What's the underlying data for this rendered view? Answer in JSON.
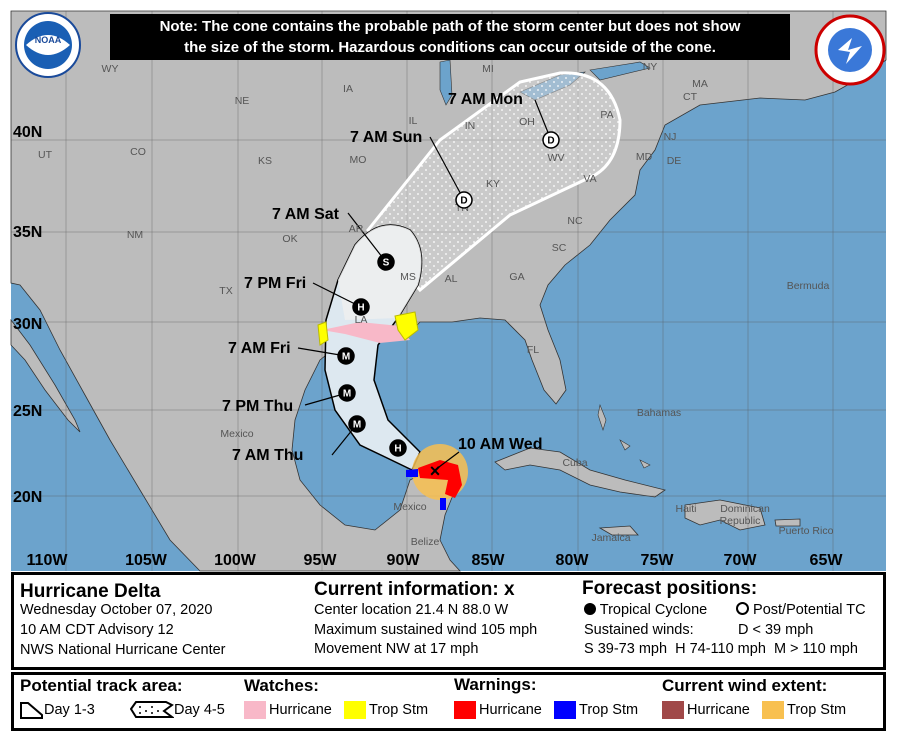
{
  "note": [
    "Note: The cone contains the probable path of the storm center but does not show",
    "the size of the storm. Hazardous conditions can occur outside of the cone."
  ],
  "logos": {
    "left": "NOAA",
    "right": "NATIONAL WEATHER SERVICE"
  },
  "colors": {
    "ocean": "#6ca3cc",
    "land": "#bcbcbc",
    "cone": "#ffffff",
    "hurricane_watch": "#f8b8c8",
    "ts_watch": "#ffff00",
    "hurricane_warning": "#ff0000",
    "ts_warning": "#0000ff",
    "hurricane_wind": "#a04848",
    "ts_wind": "#f8c050"
  },
  "lat_labels": [
    "40N",
    "35N",
    "30N",
    "25N",
    "20N"
  ],
  "lon_labels": [
    "110W",
    "105W",
    "100W",
    "95W",
    "90W",
    "85W",
    "80W",
    "75W",
    "70W",
    "65W"
  ],
  "regions": [
    "WY",
    "NE",
    "IA",
    "MI",
    "NY",
    "MA",
    "CT",
    "UT",
    "CO",
    "KS",
    "MO",
    "IL",
    "IN",
    "OH",
    "PA",
    "NJ",
    "DE",
    "MD",
    "WV",
    "KY",
    "VA",
    "TN",
    "NC",
    "OK",
    "AR",
    "NM",
    "TX",
    "MS",
    "AL",
    "GA",
    "SC",
    "LA",
    "FL",
    "Bermuda",
    "Bahamas",
    "Cuba",
    "Mexico",
    "Mexico",
    "Belize",
    "Jamaica",
    "Haiti",
    "Dominican Republic",
    "Puerto Rico"
  ],
  "forecast_points": [
    {
      "time": "10 AM Wed",
      "symbol": "X"
    },
    {
      "time": "",
      "symbol": "H"
    },
    {
      "time": "7 AM Thu",
      "symbol": "M"
    },
    {
      "time": "7 PM Thu",
      "symbol": "M"
    },
    {
      "time": "7 AM Fri",
      "symbol": "M"
    },
    {
      "time": "7 PM Fri",
      "symbol": "H"
    },
    {
      "time": "7 AM Sat",
      "symbol": "S"
    },
    {
      "time": "7 AM Sun",
      "symbol": "D"
    },
    {
      "time": "7 AM Mon",
      "symbol": "D"
    }
  ],
  "info": {
    "storm": "Hurricane Delta",
    "date": "Wednesday October 07, 2020",
    "advisory": "10 AM CDT Advisory 12",
    "center": "NWS National Hurricane Center",
    "current_title": "Current information: x",
    "location": "Center location 21.4 N 88.0 W",
    "wind": "Maximum sustained wind 105 mph",
    "movement": "Movement NW at 17 mph",
    "forecast_title": "Forecast positions:",
    "tc": "Tropical Cyclone",
    "ptc": "Post/Potential TC",
    "sustained": "Sustained winds:",
    "d": "D < 39 mph",
    "shm": "S 39-73 mph  H 74-110 mph  M > 110 mph"
  },
  "legend": {
    "track_title": "Potential track area:",
    "day13": "Day 1-3",
    "day45": "Day 4-5",
    "watches_title": "Watches:",
    "warnings_title": "Warnings:",
    "wind_title": "Current wind extent:",
    "hurricane": "Hurricane",
    "tropstm": "Trop Stm"
  }
}
